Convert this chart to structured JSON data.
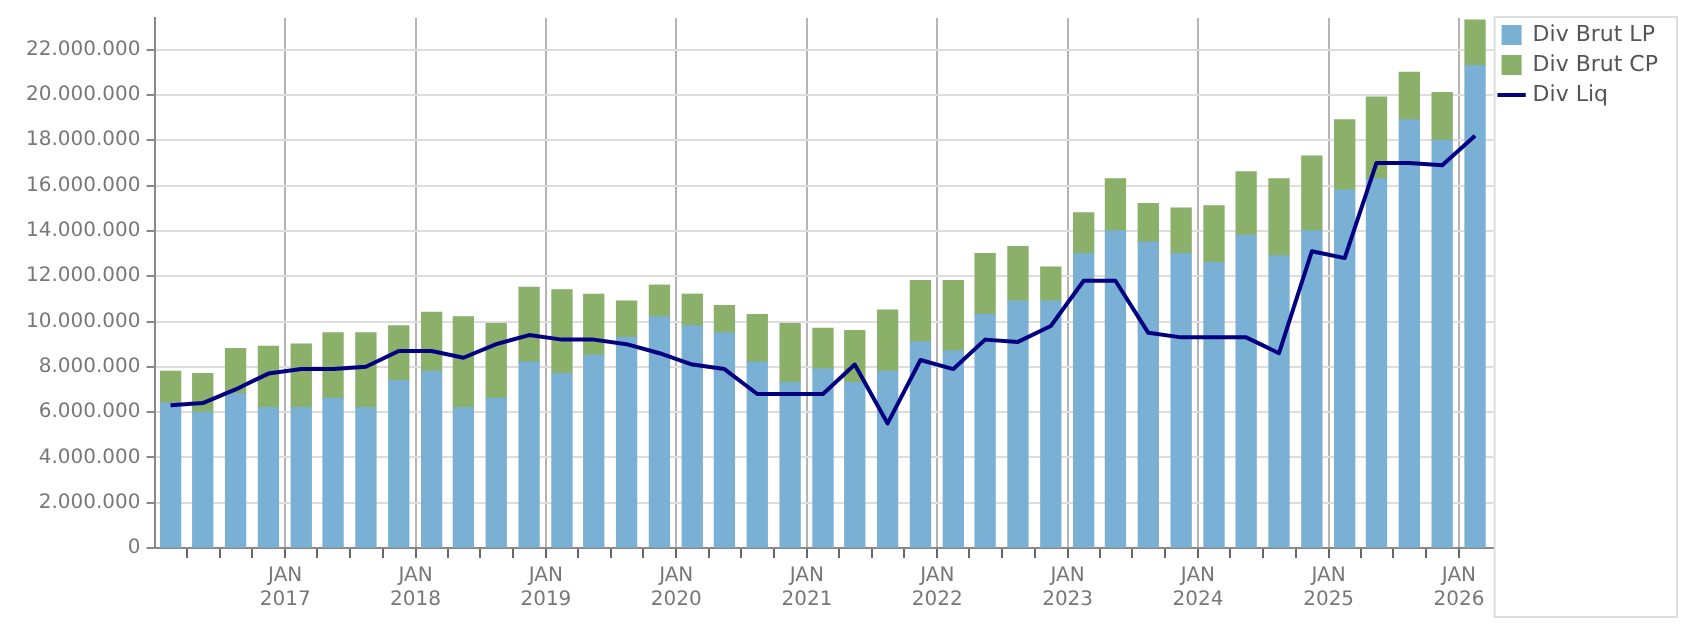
{
  "chart_data": {
    "type": "bar",
    "stacked": true,
    "grid": true,
    "legend": "top right",
    "x": [
      "2016-02-15",
      "2016-05-15",
      "2016-08-15",
      "2016-11-15",
      "2017-02-15",
      "2017-05-15",
      "2017-08-15",
      "2017-11-15",
      "2018-02-15",
      "2018-05-15",
      "2018-08-15",
      "2018-11-15",
      "2019-02-15",
      "2019-05-15",
      "2019-08-15",
      "2019-11-15",
      "2020-02-15",
      "2020-05-15",
      "2020-08-15",
      "2020-11-15",
      "2021-02-15",
      "2021-05-15",
      "2021-08-15",
      "2021-11-15",
      "2022-02-15",
      "2022-05-15",
      "2022-08-15",
      "2022-11-15",
      "2023-02-15",
      "2023-05-15",
      "2023-08-15",
      "2023-11-15",
      "2024-02-15",
      "2024-05-15",
      "2024-08-15",
      "2024-11-15",
      "2025-02-15",
      "2025-05-15",
      "2025-08-15",
      "2025-11-15",
      "2026-02-15"
    ],
    "xlim": [
      "2016-01-01",
      "2026-04-08"
    ],
    "xticks": [
      {
        "value": "2016-04-01",
        "label": null
      },
      {
        "value": "2016-07-01",
        "label": null
      },
      {
        "value": "2016-10-01",
        "label": null
      },
      {
        "value": "2017-01-01",
        "label": "JAN 2017"
      },
      {
        "value": "2017-04-01",
        "label": null
      },
      {
        "value": "2017-07-01",
        "label": null
      },
      {
        "value": "2017-10-01",
        "label": null
      },
      {
        "value": "2018-01-01",
        "label": "JAN 2018"
      },
      {
        "value": "2018-04-01",
        "label": null
      },
      {
        "value": "2018-07-01",
        "label": null
      },
      {
        "value": "2018-10-01",
        "label": null
      },
      {
        "value": "2019-01-01",
        "label": "JAN 2019"
      },
      {
        "value": "2019-04-01",
        "label": null
      },
      {
        "value": "2019-07-01",
        "label": null
      },
      {
        "value": "2019-10-01",
        "label": null
      },
      {
        "value": "2020-01-01",
        "label": "JAN 2020"
      },
      {
        "value": "2020-04-01",
        "label": null
      },
      {
        "value": "2020-07-01",
        "label": null
      },
      {
        "value": "2020-10-01",
        "label": null
      },
      {
        "value": "2021-01-01",
        "label": "JAN 2021"
      },
      {
        "value": "2021-04-01",
        "label": null
      },
      {
        "value": "2021-07-01",
        "label": null
      },
      {
        "value": "2021-10-01",
        "label": null
      },
      {
        "value": "2022-01-01",
        "label": "JAN 2022"
      },
      {
        "value": "2022-04-01",
        "label": null
      },
      {
        "value": "2022-07-01",
        "label": null
      },
      {
        "value": "2022-10-01",
        "label": null
      },
      {
        "value": "2023-01-01",
        "label": "JAN 2023"
      },
      {
        "value": "2023-04-01",
        "label": null
      },
      {
        "value": "2023-07-01",
        "label": null
      },
      {
        "value": "2023-10-01",
        "label": null
      },
      {
        "value": "2024-01-01",
        "label": "JAN 2024"
      },
      {
        "value": "2024-04-01",
        "label": null
      },
      {
        "value": "2024-07-01",
        "label": null
      },
      {
        "value": "2024-10-01",
        "label": null
      },
      {
        "value": "2025-01-01",
        "label": "JAN 2025"
      },
      {
        "value": "2025-04-01",
        "label": null
      },
      {
        "value": "2025-07-01",
        "label": null
      },
      {
        "value": "2025-10-01",
        "label": null
      },
      {
        "value": "2026-01-01",
        "label": "JAN 2026"
      }
    ],
    "ylim": [
      0,
      23400000
    ],
    "yticks": [
      0,
      {
        "value": 2000000,
        "label": "2.000.000"
      },
      {
        "value": 4000000,
        "label": "4.000.000"
      },
      {
        "value": 6000000,
        "label": "6.000.000"
      },
      {
        "value": 8000000,
        "label": "8.000.000"
      },
      {
        "value": 10000000,
        "label": "10.000.000"
      },
      {
        "value": 12000000,
        "label": "12.000.000"
      },
      {
        "value": 14000000,
        "label": "14.000.000"
      },
      {
        "value": 16000000,
        "label": "16.000.000"
      },
      {
        "value": 18000000,
        "label": "18.000.000"
      },
      {
        "value": 20000000,
        "label": "20.000.000"
      },
      {
        "value": 22000000,
        "label": "22.000.000"
      }
    ],
    "series": [
      {
        "name": "Div Brut LP",
        "color": "#7ab0d4",
        "values": [
          6400000,
          6000000,
          6800000,
          6200000,
          6200000,
          6600000,
          6200000,
          7400000,
          7800000,
          6200000,
          6600000,
          8200000,
          7700000,
          8500000,
          9300000,
          10200000,
          9800000,
          9500000,
          8200000,
          7300000,
          7900000,
          7300000,
          7800000,
          9100000,
          8700000,
          10300000,
          10900000,
          10900000,
          13000000,
          14000000,
          13500000,
          13000000,
          12600000,
          13800000,
          12900000,
          14000000,
          15800000,
          16300000,
          18900000,
          18000000,
          21300000
        ]
      },
      {
        "name": "Div Brut CP",
        "color": "#8ab06a",
        "values": [
          1400000,
          1700000,
          2000000,
          2700000,
          2800000,
          2900000,
          3300000,
          2400000,
          2600000,
          4000000,
          3300000,
          3300000,
          3700000,
          2700000,
          1600000,
          1400000,
          1400000,
          1200000,
          2100000,
          2600000,
          1800000,
          2300000,
          2700000,
          2700000,
          3100000,
          2700000,
          2400000,
          1500000,
          1800000,
          2300000,
          1700000,
          2000000,
          2500000,
          2800000,
          3400000,
          3300000,
          3100000,
          3600000,
          2100000,
          2100000,
          2000000
        ]
      },
      {
        "name": "Div Liq",
        "type": "line",
        "color": "#000080",
        "values": [
          6300000,
          6400000,
          7000000,
          7700000,
          7900000,
          7900000,
          8000000,
          8700000,
          8700000,
          8400000,
          9000000,
          9400000,
          9200000,
          9200000,
          9000000,
          8600000,
          8100000,
          7900000,
          6800000,
          6800000,
          6800000,
          8100000,
          5500000,
          8300000,
          7900000,
          9200000,
          9100000,
          9800000,
          11800000,
          11800000,
          9500000,
          9300000,
          9300000,
          9300000,
          8600000,
          13100000,
          12800000,
          17000000,
          17000000,
          16900000,
          18200000
        ]
      }
    ]
  }
}
